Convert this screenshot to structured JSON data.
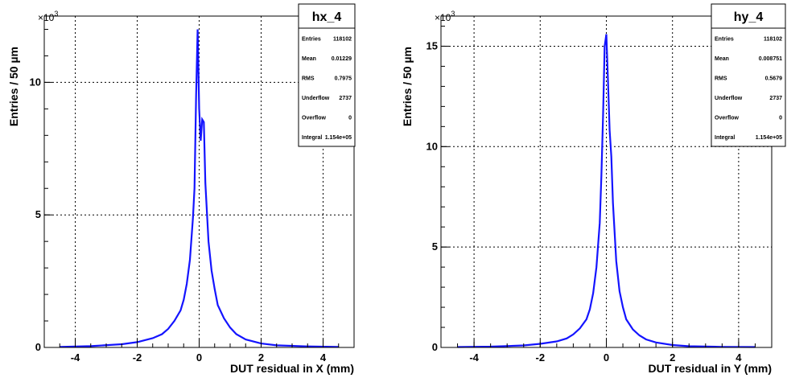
{
  "chart_data": [
    {
      "type": "line",
      "title": "hx_4",
      "xlabel": "DUT residual in X (mm)",
      "ylabel": "Entries / 50 µm",
      "y_exponent_base": "×10",
      "y_exponent_power": "3",
      "xlim": [
        -5,
        5
      ],
      "ylim": [
        0,
        12.5
      ],
      "x_ticks": [
        -4,
        -2,
        0,
        2,
        4
      ],
      "x_tick_labels": [
        "-4",
        "-2",
        "0",
        "2",
        "4"
      ],
      "y_ticks": [
        0,
        5,
        10
      ],
      "y_tick_labels": [
        "0",
        "5",
        "10"
      ],
      "grid": true,
      "color": "#1414ff",
      "y_unit_scale": 1000,
      "stats": [
        {
          "label": "Entries",
          "value": "118102"
        },
        {
          "label": "Mean",
          "value": "0.01229"
        },
        {
          "label": "RMS",
          "value": "0.7975"
        },
        {
          "label": "Underflow",
          "value": "2737"
        },
        {
          "label": "Overflow",
          "value": "0"
        },
        {
          "label": "Integral",
          "value": "1.154e+05"
        }
      ],
      "series": [
        {
          "x": [
            -4.5,
            -3.5,
            -2.5,
            -2.0,
            -1.5,
            -1.2,
            -1.0,
            -0.8,
            -0.6,
            -0.5,
            -0.4,
            -0.3,
            -0.2,
            -0.15,
            -0.1,
            -0.05,
            0.0,
            0.05,
            0.1,
            0.15,
            0.2,
            0.3,
            0.4,
            0.5,
            0.6,
            0.8,
            1.0,
            1.2,
            1.5,
            2.0,
            2.5,
            3.5,
            4.5
          ],
          "y": [
            0.02,
            0.05,
            0.12,
            0.2,
            0.35,
            0.5,
            0.7,
            1.0,
            1.4,
            1.8,
            2.4,
            3.3,
            4.9,
            6.0,
            9.5,
            12.0,
            9.0,
            7.8,
            8.6,
            8.5,
            6.2,
            4.0,
            2.9,
            2.2,
            1.6,
            1.1,
            0.75,
            0.5,
            0.3,
            0.15,
            0.08,
            0.04,
            0.02
          ]
        }
      ]
    },
    {
      "type": "line",
      "title": "hy_4",
      "xlabel": "DUT residual in Y (mm)",
      "ylabel": "Entries / 50 µm",
      "y_exponent_base": "×10",
      "y_exponent_power": "3",
      "xlim": [
        -5,
        5
      ],
      "ylim": [
        0,
        16.5
      ],
      "x_ticks": [
        -4,
        -2,
        0,
        2,
        4
      ],
      "x_tick_labels": [
        "-4",
        "-2",
        "0",
        "2",
        "4"
      ],
      "y_ticks": [
        0,
        5,
        10,
        15
      ],
      "y_tick_labels": [
        "0",
        "5",
        "10",
        "15"
      ],
      "grid": true,
      "color": "#1414ff",
      "y_unit_scale": 1000,
      "stats": [
        {
          "label": "Entries",
          "value": "118102"
        },
        {
          "label": "Mean",
          "value": "0.008751"
        },
        {
          "label": "RMS",
          "value": "0.5679"
        },
        {
          "label": "Underflow",
          "value": "2737"
        },
        {
          "label": "Overflow",
          "value": "0"
        },
        {
          "label": "Integral",
          "value": "1.154e+05"
        }
      ],
      "series": [
        {
          "x": [
            -4.5,
            -3.5,
            -2.5,
            -2.0,
            -1.5,
            -1.2,
            -1.0,
            -0.8,
            -0.6,
            -0.5,
            -0.4,
            -0.3,
            -0.2,
            -0.15,
            -0.1,
            -0.05,
            0.0,
            0.05,
            0.1,
            0.15,
            0.2,
            0.3,
            0.4,
            0.5,
            0.6,
            0.8,
            1.0,
            1.2,
            1.5,
            2.0,
            2.5,
            3.5,
            4.5
          ],
          "y": [
            0.02,
            0.04,
            0.1,
            0.18,
            0.3,
            0.45,
            0.65,
            0.95,
            1.4,
            1.9,
            2.7,
            4.0,
            6.2,
            8.5,
            11.5,
            15.0,
            15.6,
            13.2,
            10.8,
            9.5,
            7.2,
            4.3,
            2.8,
            2.0,
            1.4,
            0.9,
            0.6,
            0.4,
            0.25,
            0.12,
            0.06,
            0.03,
            0.02
          ]
        }
      ]
    }
  ]
}
